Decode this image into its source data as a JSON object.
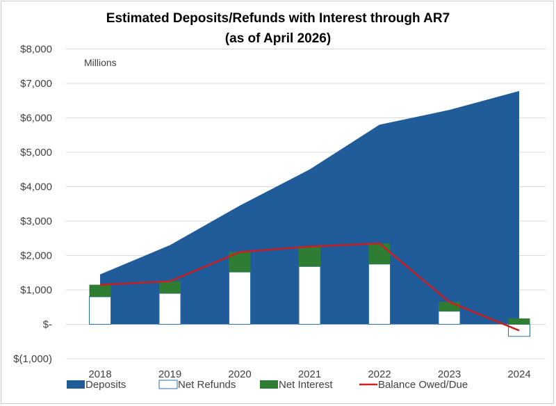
{
  "chart_data": {
    "type": "area",
    "title_line1": "Estimated Deposits/Refunds with Interest through AR7",
    "title_line2": "(as of April 2026)",
    "units_label": "Millions",
    "categories": [
      "2018",
      "2019",
      "2020",
      "2021",
      "2022",
      "2023",
      "2024"
    ],
    "ylim": [
      -1000,
      8000
    ],
    "yticks": [
      8000,
      7000,
      6000,
      5000,
      4000,
      3000,
      2000,
      1000,
      0,
      -1000
    ],
    "ytick_labels": [
      "$8,000",
      "$7,000",
      "$6,000",
      "$5,000",
      "$4,000",
      "$3,000",
      "$2,000",
      "$1,000",
      "$-",
      "$(1,000)"
    ],
    "grid": true,
    "legend_position": "bottom",
    "series": [
      {
        "name": "Deposits",
        "kind": "area",
        "color": "#1f5c99",
        "values": [
          1450,
          2300,
          3450,
          4500,
          5800,
          6230,
          6780
        ]
      },
      {
        "name": "Net Refunds",
        "kind": "stacked-bar",
        "color": "#ffffff",
        "values": [
          800,
          900,
          1520,
          1680,
          1750,
          380,
          -350
        ]
      },
      {
        "name": "Net Interest",
        "kind": "stacked-bar",
        "color": "#2e7d32",
        "values": [
          350,
          350,
          580,
          580,
          600,
          270,
          170
        ]
      },
      {
        "name": "Balance Owed/Due",
        "kind": "line",
        "color": "#cc1f1f",
        "values": [
          1150,
          1250,
          2100,
          2260,
          2350,
          650,
          -180
        ]
      }
    ]
  }
}
